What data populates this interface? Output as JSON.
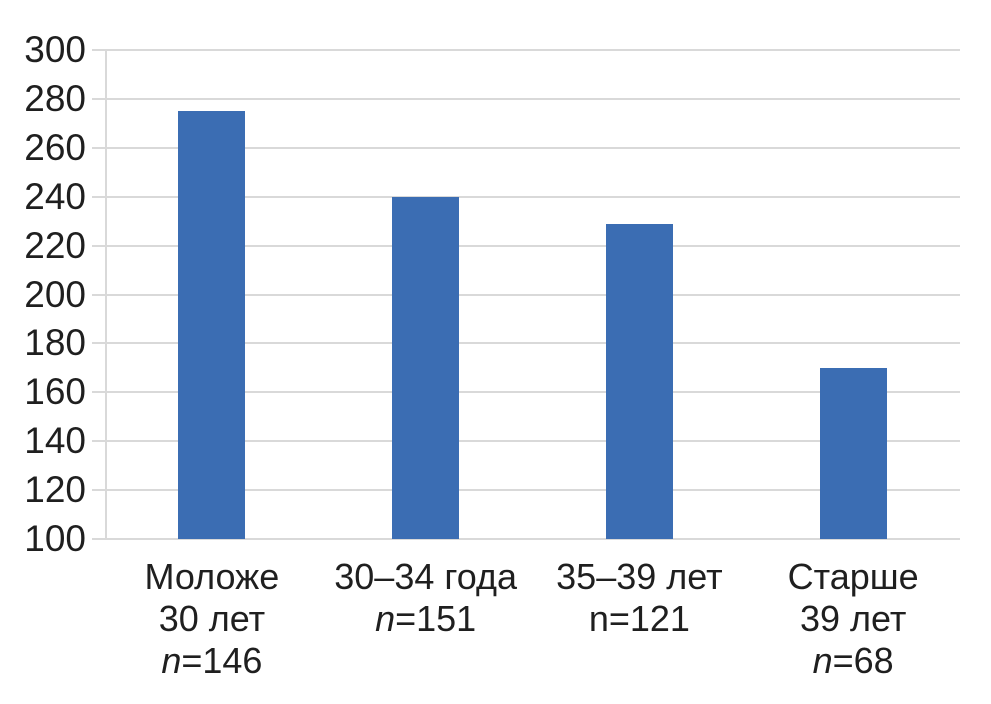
{
  "chart_data": {
    "type": "bar",
    "title": "",
    "xlabel": "",
    "ylabel": "",
    "ylim": [
      100,
      300
    ],
    "ytick_step": 20,
    "yticks": [
      300,
      280,
      260,
      240,
      220,
      200,
      180,
      160,
      140,
      120,
      100
    ],
    "grid": true,
    "legend": false,
    "values": [
      275,
      240,
      229,
      170
    ],
    "categories": [
      {
        "lines": [
          "Моложе",
          "30 лет"
        ],
        "n_symbol": "n",
        "n_rest": "=146",
        "n_italic": true
      },
      {
        "lines": [
          "30–34 года"
        ],
        "n_symbol": "n",
        "n_rest": "=151",
        "n_italic": true
      },
      {
        "lines": [
          "35–39 лет"
        ],
        "n_symbol": "n",
        "n_rest": "=121",
        "n_italic": false
      },
      {
        "lines": [
          "Старше",
          "39 лет"
        ],
        "n_symbol": "n",
        "n_rest": "=68",
        "n_italic": true
      }
    ],
    "colors": {
      "bar": "#3b6db3",
      "gridline": "#d9d9d9",
      "text": "#1f1f1f"
    }
  }
}
